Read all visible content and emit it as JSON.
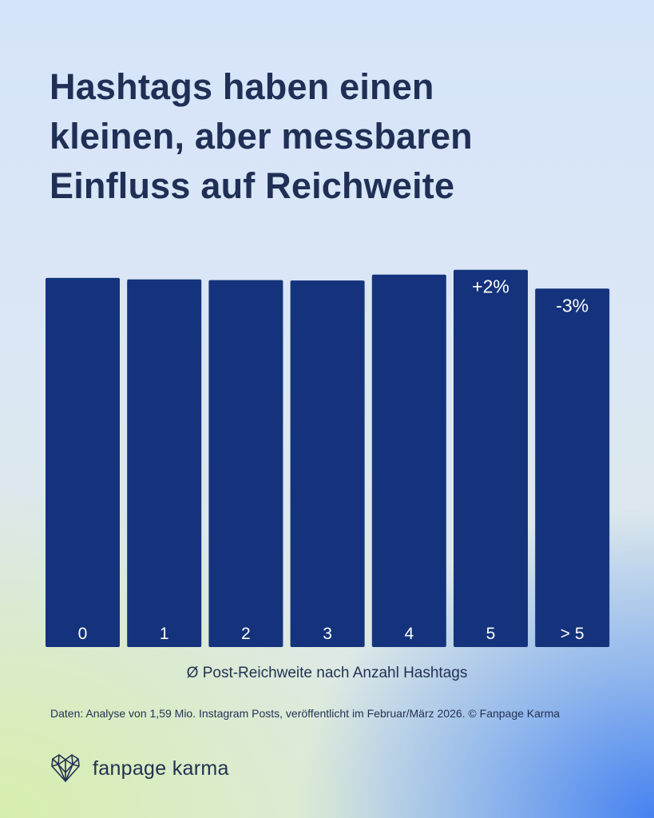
{
  "title_lines": [
    "Hashtags haben einen",
    "kleinen, aber messbaren",
    "Einfluss auf Reichweite"
  ],
  "chart_data": {
    "type": "bar",
    "title": "",
    "xlabel": "Ø Post-Reichweite nach Anzahl Hashtags",
    "ylabel": "",
    "categories": [
      "0",
      "1",
      "2",
      "3",
      "4",
      "5",
      "> 5"
    ],
    "values": [
      100,
      99.6,
      99.4,
      99.3,
      100.9,
      102.2,
      97.1
    ],
    "annotations": [
      "",
      "",
      "",
      "",
      "",
      "+2%",
      "-3%"
    ],
    "ylim": [
      0,
      103
    ],
    "grid": false,
    "bar_color": "#14337c"
  },
  "source_note": "Daten: Analyse von 1,59 Mio. Instagram Posts, veröffentlicht im Februar/März 2026. © Fanpage Karma",
  "brand": {
    "logo_icon": "heart-network-icon",
    "name": "fanpage karma"
  },
  "colors": {
    "text": "#1f2f55",
    "bar": "#14337c",
    "bar_label": "#ffffff"
  }
}
